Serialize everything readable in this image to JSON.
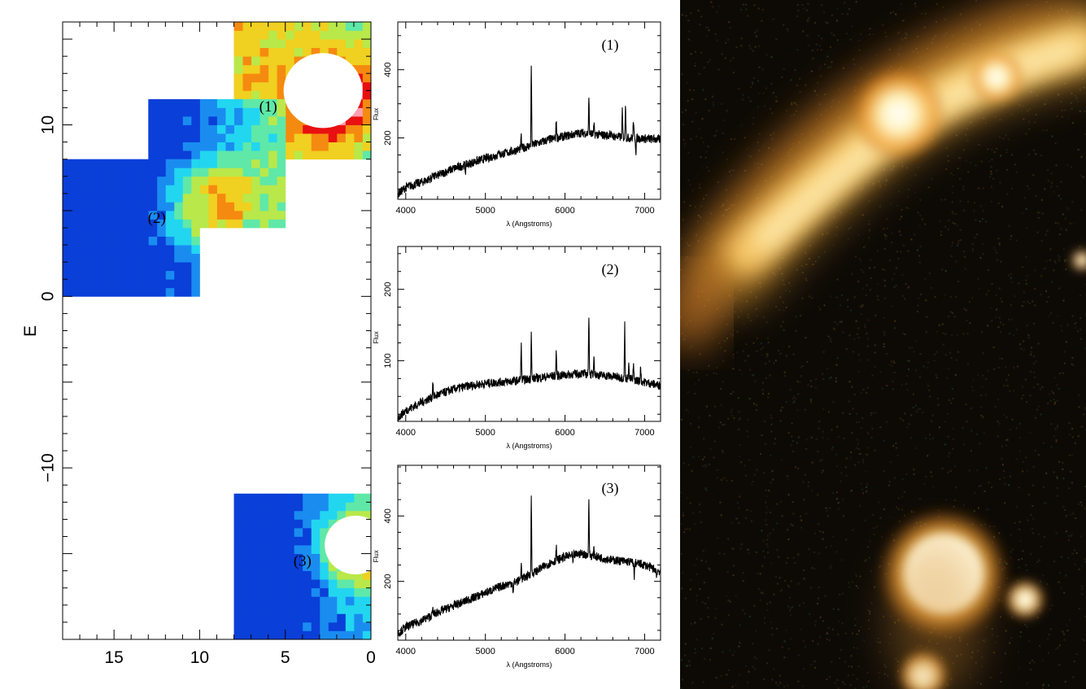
{
  "chart_data": [
    {
      "type": "heatmap",
      "ylabel": "E",
      "xlim": [
        18,
        0
      ],
      "ylim": [
        -20,
        16
      ],
      "x_ticks": [
        15,
        10,
        5,
        0
      ],
      "y_ticks": [
        10,
        0,
        -10
      ],
      "x_tick_labels": [
        "15",
        "10",
        "5",
        "0"
      ],
      "y_tick_labels": [
        "10",
        "0",
        "−10"
      ],
      "colorscale": [
        "#0a3fd8",
        "#1a8cf0",
        "#22d6f0",
        "#5fe8a8",
        "#b9e84a",
        "#f0d020",
        "#f58a10",
        "#e81010",
        "#ff9fb0",
        "#ffffff"
      ],
      "annotations": [
        {
          "text": "(1)",
          "x": 6,
          "y": 11
        },
        {
          "text": "(2)",
          "x": 12.5,
          "y": 4.5
        },
        {
          "text": "(3)",
          "x": 4,
          "y": -15.5
        }
      ],
      "regions": [
        {
          "x0": 8,
          "x1": 0,
          "y0": 8,
          "y1": 16,
          "peak": [
            2,
            11.5
          ],
          "base": 0.38,
          "grad": [
            0.012,
            0.0
          ]
        },
        {
          "x0": 13,
          "x1": 5,
          "y0": 4,
          "y1": 11.5,
          "peak": [
            9,
            5.3
          ],
          "base": 0.32,
          "grad": [
            -0.03,
            0.012
          ]
        },
        {
          "x0": 18,
          "x1": 10,
          "y0": 0,
          "y1": 8,
          "peak": [
            9,
            5.3
          ],
          "base": 0.12,
          "grad": [
            -0.02,
            0.0
          ]
        },
        {
          "x0": 8,
          "x1": 0,
          "y0": -20,
          "y1": -11.5,
          "peak": [
            0.5,
            -14.5
          ],
          "base": 0.2,
          "grad": [
            -0.02,
            0.0
          ]
        }
      ]
    },
    {
      "type": "line",
      "label": "(1)",
      "xlabel": "λ (Angstroms)",
      "ylabel": "Flux",
      "xlim": [
        3900,
        7200
      ],
      "ylim": [
        20,
        540
      ],
      "x_ticks": [
        4000,
        5000,
        6000,
        7000
      ],
      "y_ticks": [
        200,
        400
      ],
      "x": [
        3900,
        4000,
        4200,
        4400,
        4600,
        4800,
        5000,
        5200,
        5400,
        5600,
        5800,
        6000,
        6200,
        6400,
        6600,
        6800,
        7000,
        7200
      ],
      "y": [
        35,
        55,
        70,
        90,
        110,
        125,
        140,
        152,
        165,
        180,
        195,
        205,
        215,
        210,
        205,
        200,
        198,
        195
      ],
      "lines": [
        {
          "x": 4340,
          "y": 18
        },
        {
          "x": 4750,
          "y": -20
        },
        {
          "x": 5170,
          "y": 22
        },
        {
          "x": 5450,
          "y": 35
        },
        {
          "x": 5577,
          "y": 235
        },
        {
          "x": 5890,
          "y": 55
        },
        {
          "x": 6300,
          "y": 100
        },
        {
          "x": 6364,
          "y": 25
        },
        {
          "x": 6563,
          "y": 20
        },
        {
          "x": 6720,
          "y": 75
        },
        {
          "x": 6760,
          "y": 105
        },
        {
          "x": 6860,
          "y": 55
        },
        {
          "x": 6890,
          "y": -40
        }
      ]
    },
    {
      "type": "line",
      "label": "(2)",
      "xlabel": "λ (Angstroms)",
      "ylabel": "Flux",
      "xlim": [
        3900,
        7200
      ],
      "ylim": [
        15,
        260
      ],
      "x_ticks": [
        4000,
        5000,
        6000,
        7000
      ],
      "y_ticks": [
        100,
        200
      ],
      "x": [
        3900,
        4000,
        4200,
        4400,
        4600,
        4800,
        5000,
        5200,
        5400,
        5600,
        5800,
        6000,
        6200,
        6400,
        6600,
        6800,
        7000,
        7200
      ],
      "y": [
        20,
        30,
        42,
        52,
        60,
        65,
        68,
        70,
        72,
        75,
        78,
        80,
        82,
        80,
        78,
        75,
        70,
        65
      ],
      "lines": [
        {
          "x": 4340,
          "y": 22
        },
        {
          "x": 5450,
          "y": 50
        },
        {
          "x": 5577,
          "y": 65
        },
        {
          "x": 5890,
          "y": 35
        },
        {
          "x": 6300,
          "y": 85
        },
        {
          "x": 6364,
          "y": 30
        },
        {
          "x": 6750,
          "y": 75
        },
        {
          "x": 6800,
          "y": 25
        },
        {
          "x": 6860,
          "y": 20
        },
        {
          "x": 6950,
          "y": 22
        }
      ]
    },
    {
      "type": "line",
      "label": "(3)",
      "xlabel": "λ (Angstroms)",
      "ylabel": "Flux",
      "xlim": [
        3900,
        7200
      ],
      "ylim": [
        20,
        555
      ],
      "x_ticks": [
        4000,
        5000,
        6000,
        7000
      ],
      "y_ticks": [
        200,
        400
      ],
      "x": [
        3900,
        4000,
        4200,
        4400,
        4600,
        4800,
        5000,
        5200,
        5400,
        5600,
        5800,
        6000,
        6200,
        6400,
        6600,
        6800,
        7000,
        7200
      ],
      "y": [
        40,
        60,
        80,
        105,
        125,
        145,
        165,
        185,
        200,
        225,
        255,
        275,
        285,
        275,
        265,
        260,
        250,
        230
      ],
      "lines": [
        {
          "x": 4340,
          "y": 20
        },
        {
          "x": 5450,
          "y": 50
        },
        {
          "x": 5577,
          "y": 235
        },
        {
          "x": 5890,
          "y": 40
        },
        {
          "x": 6300,
          "y": 160
        },
        {
          "x": 6364,
          "y": 25
        },
        {
          "x": 5350,
          "y": -35
        },
        {
          "x": 6100,
          "y": -25
        },
        {
          "x": 6870,
          "y": -45
        },
        {
          "x": 7150,
          "y": -20
        }
      ]
    }
  ],
  "image": {
    "background": "#0d0a06",
    "sources": [
      {
        "kind": "arc",
        "color": "#f2b24a"
      },
      {
        "kind": "blob",
        "color": "#fff2c8"
      },
      {
        "kind": "blob",
        "color": "#ffe9b0"
      },
      {
        "kind": "blob",
        "color": "#fff6d6"
      },
      {
        "kind": "blob",
        "color": "#ffe8a8"
      }
    ]
  }
}
